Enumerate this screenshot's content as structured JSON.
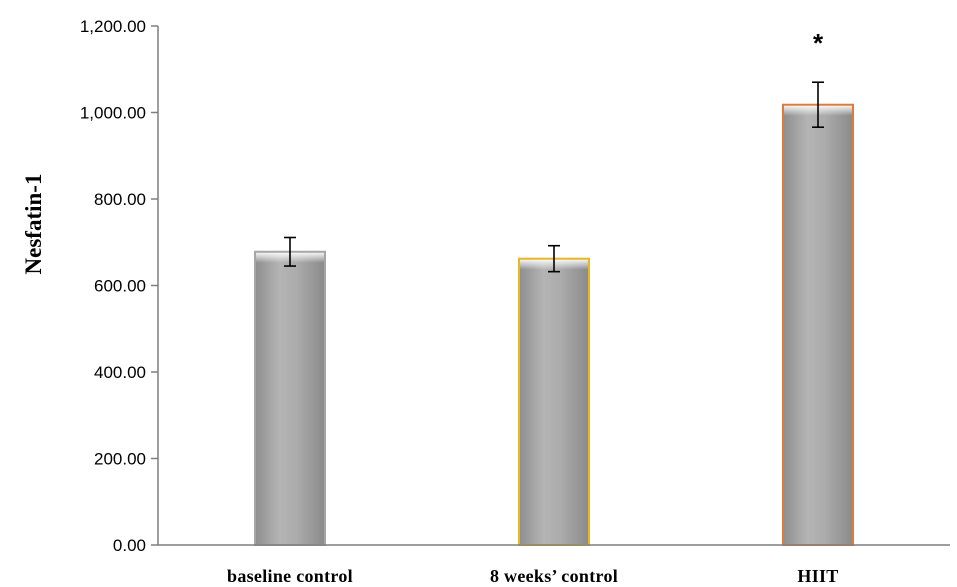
{
  "chart_data": {
    "type": "bar",
    "ylabel": "Nesfatin-1",
    "xlabel": "",
    "ylim": [
      0,
      1200
    ],
    "ytick_step": 200,
    "ytick_labels": [
      "0.00",
      "200.00",
      "400.00",
      "600.00",
      "800.00",
      "1,000.00",
      "1,200.00"
    ],
    "grid": false,
    "legend": "none",
    "categories": [
      "baseline control",
      "8 weeks’ control",
      "HIIT"
    ],
    "values": [
      678,
      662,
      1018
    ],
    "error": [
      33,
      30,
      52
    ],
    "annotations": [
      "",
      "",
      "*"
    ],
    "bar_color": "#a6a6a6",
    "bar_edge_colors": [
      "#a6a6a6",
      "#e8b820",
      "#e07a3a"
    ]
  }
}
